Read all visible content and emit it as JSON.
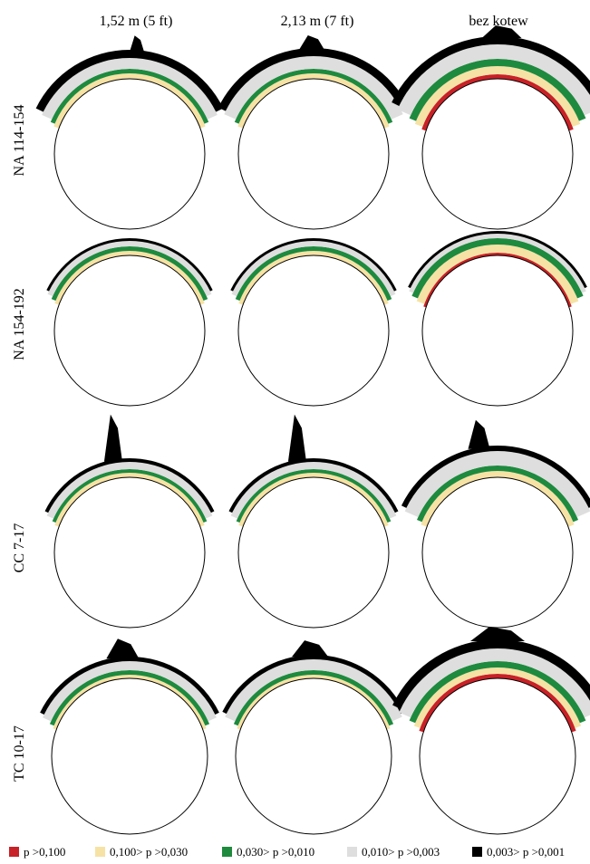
{
  "figure": {
    "column_labels": [
      "1,52 m (5 ft)",
      "2,13 m (7 ft)",
      "bez kotew"
    ],
    "row_labels": [
      "NA 114-154",
      "NA 154-192",
      "CC 7-17",
      "TC 10-17"
    ],
    "legend": [
      {
        "label": "p >0,100",
        "color": "#c82127"
      },
      {
        "label": "0,100> p >0,030",
        "color": "#f6e2a4"
      },
      {
        "label": "0,030> p >0,010",
        "color": "#1e8a3e"
      },
      {
        "label": "0,010> p >0,003",
        "color": "#dedede"
      },
      {
        "label": "0,003> p >0,001",
        "color": "#000000"
      }
    ],
    "zone_colors": [
      "#c82127",
      "#f6e2a4",
      "#1e8a3e",
      "#dedede",
      "#000000"
    ]
  }
}
